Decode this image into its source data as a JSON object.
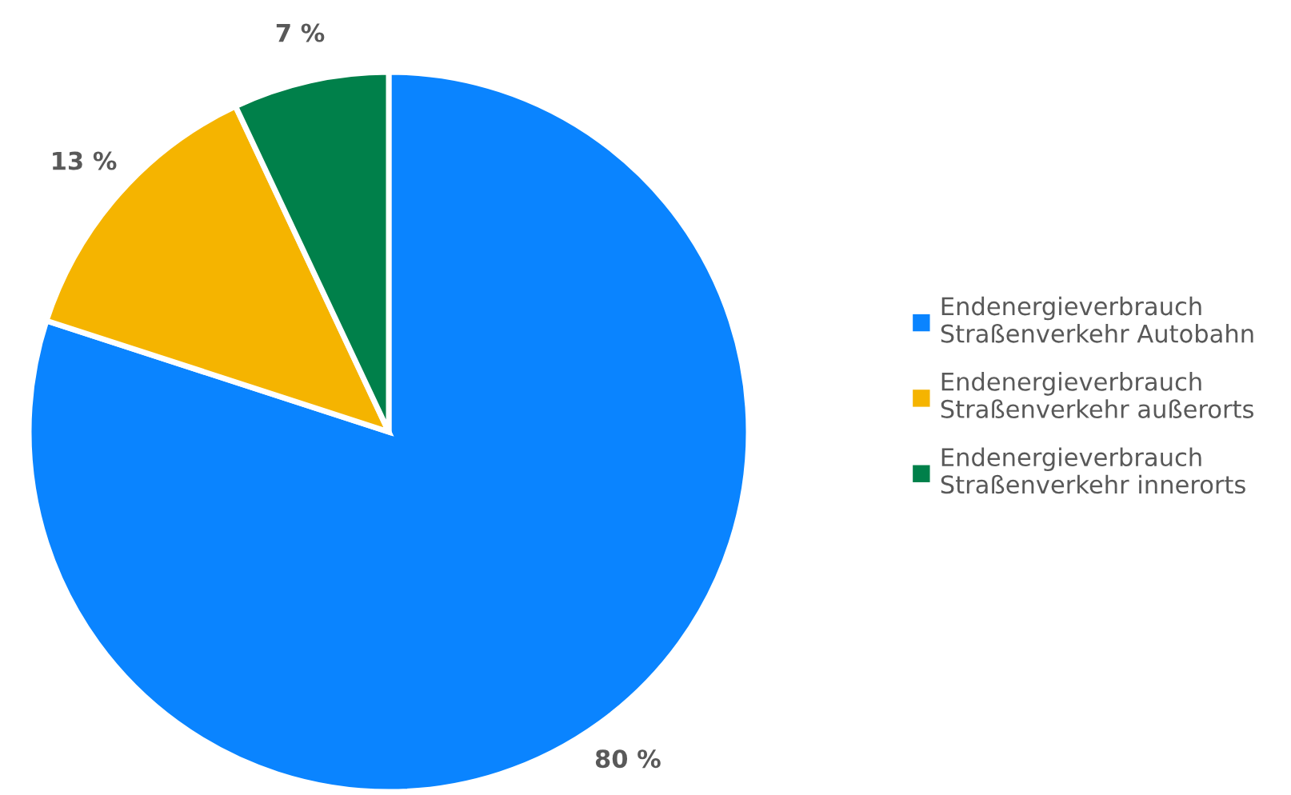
{
  "chart_data": {
    "type": "pie",
    "categories": [
      "Endenergieverbrauch\nStraßenverkehr Autobahn",
      "Endenergieverbrauch\nStraßenverkehr außerorts",
      "Endenergieverbrauch\nStraßenverkehr innerorts"
    ],
    "values": [
      80,
      13,
      7
    ],
    "colors": [
      "#0a84ff",
      "#f5b400",
      "#00804a"
    ],
    "value_labels": [
      "80 %",
      "13 %",
      "7 %"
    ],
    "legend": "right"
  }
}
